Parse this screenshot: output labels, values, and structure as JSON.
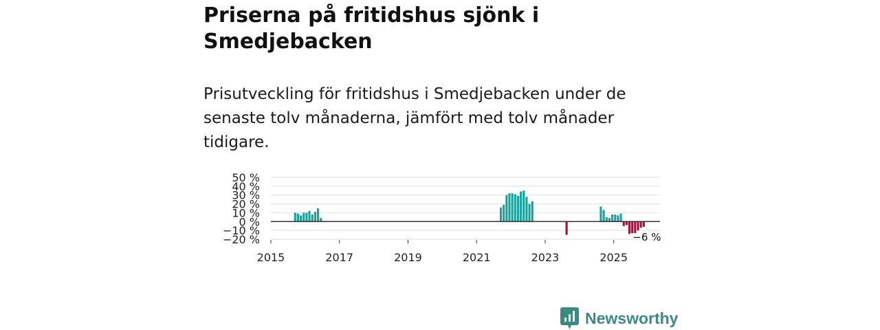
{
  "header": {
    "title": "Priserna på fritidshus sjönk i Smedjebacken",
    "subtitle": "Prisutveckling för fritidshus i Smedjebacken under de senaste tolv månaderna, jämfört med tolv månader tidigare."
  },
  "brand": {
    "name": "Newsworthy"
  },
  "colors": {
    "positive": "#1aa39a",
    "negative": "#a5123f",
    "zero_line": "#333333",
    "grid": "#dddddd",
    "brand": "#3a8c82"
  },
  "chart_data": {
    "type": "bar",
    "title": "Priserna på fritidshus sjönk i Smedjebacken",
    "xlabel": "",
    "ylabel": "",
    "ylim": [
      -20,
      50
    ],
    "xlim": [
      2015,
      2026.35
    ],
    "grid": true,
    "y_ticks": [
      {
        "value": 50,
        "label": "50 %"
      },
      {
        "value": 40,
        "label": "40 %"
      },
      {
        "value": 30,
        "label": "30 %"
      },
      {
        "value": 20,
        "label": "20 %"
      },
      {
        "value": 10,
        "label": "10 %"
      },
      {
        "value": 0,
        "label": "0 %"
      },
      {
        "value": -10,
        "label": "−10 %"
      },
      {
        "value": -20,
        "label": "−20 %"
      }
    ],
    "x_ticks": [
      {
        "value": 2015,
        "label": "2015"
      },
      {
        "value": 2017,
        "label": "2017"
      },
      {
        "value": 2019,
        "label": "2019"
      },
      {
        "value": 2021,
        "label": "2021"
      },
      {
        "value": 2023,
        "label": "2023"
      },
      {
        "value": 2025,
        "label": "2025"
      }
    ],
    "series": [
      {
        "name": "Prisutveckling",
        "points": [
          {
            "x": "2015-09",
            "value": 10
          },
          {
            "x": "2015-10",
            "value": 9
          },
          {
            "x": "2015-11",
            "value": 7
          },
          {
            "x": "2015-12",
            "value": 10
          },
          {
            "x": "2016-01",
            "value": 10
          },
          {
            "x": "2016-02",
            "value": 12
          },
          {
            "x": "2016-03",
            "value": 8
          },
          {
            "x": "2016-04",
            "value": 11
          },
          {
            "x": "2016-05",
            "value": 15
          },
          {
            "x": "2016-06",
            "value": 4
          },
          {
            "x": "2021-09",
            "value": 16
          },
          {
            "x": "2021-10",
            "value": 19
          },
          {
            "x": "2021-11",
            "value": 30
          },
          {
            "x": "2021-12",
            "value": 32
          },
          {
            "x": "2022-01",
            "value": 32
          },
          {
            "x": "2022-02",
            "value": 31
          },
          {
            "x": "2022-03",
            "value": 29
          },
          {
            "x": "2022-04",
            "value": 34
          },
          {
            "x": "2022-05",
            "value": 35
          },
          {
            "x": "2022-06",
            "value": 28
          },
          {
            "x": "2022-07",
            "value": 20
          },
          {
            "x": "2022-08",
            "value": 23
          },
          {
            "x": "2023-08",
            "value": -15
          },
          {
            "x": "2024-08",
            "value": 17
          },
          {
            "x": "2024-09",
            "value": 13
          },
          {
            "x": "2024-10",
            "value": 5
          },
          {
            "x": "2024-11",
            "value": 4
          },
          {
            "x": "2024-12",
            "value": 8
          },
          {
            "x": "2025-01",
            "value": 8
          },
          {
            "x": "2025-02",
            "value": 7
          },
          {
            "x": "2025-03",
            "value": 9
          },
          {
            "x": "2025-04",
            "value": -5
          },
          {
            "x": "2025-05",
            "value": -4
          },
          {
            "x": "2025-06",
            "value": -14
          },
          {
            "x": "2025-07",
            "value": -13
          },
          {
            "x": "2025-08",
            "value": -13
          },
          {
            "x": "2025-09",
            "value": -10
          },
          {
            "x": "2025-10",
            "value": -7
          },
          {
            "x": "2025-11",
            "value": -6
          }
        ]
      }
    ],
    "annotations": [
      {
        "x": "2025-11",
        "value": -6,
        "text": "−6 %"
      }
    ]
  }
}
